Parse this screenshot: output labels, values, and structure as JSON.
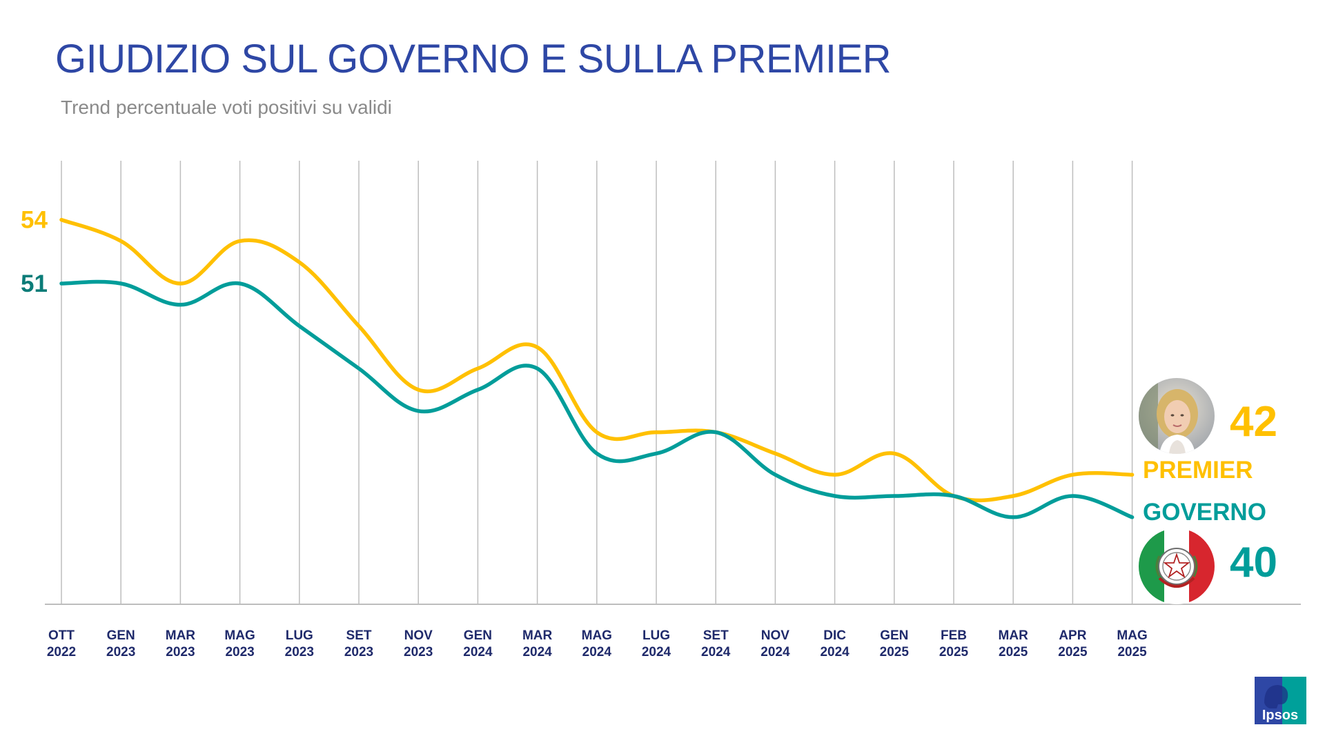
{
  "title": "GIUDIZIO SUL GOVERNO E SULLA PREMIER",
  "subtitle": "Trend percentuale voti positivi su validi",
  "chart_data": {
    "type": "line",
    "title": "GIUDIZIO SUL GOVERNO E SULLA PREMIER",
    "subtitle": "Trend percentuale voti positivi su validi",
    "categories": [
      [
        "OTT",
        "2022"
      ],
      [
        "GEN",
        "2023"
      ],
      [
        "MAR",
        "2023"
      ],
      [
        "MAG",
        "2023"
      ],
      [
        "LUG",
        "2023"
      ],
      [
        "SET",
        "2023"
      ],
      [
        "NOV",
        "2023"
      ],
      [
        "GEN",
        "2024"
      ],
      [
        "MAR",
        "2024"
      ],
      [
        "MAG",
        "2024"
      ],
      [
        "LUG",
        "2024"
      ],
      [
        "SET",
        "2024"
      ],
      [
        "NOV",
        "2024"
      ],
      [
        "DIC",
        "2024"
      ],
      [
        "GEN",
        "2025"
      ],
      [
        "FEB",
        "2025"
      ],
      [
        "MAR",
        "2025"
      ],
      [
        "APR",
        "2025"
      ],
      [
        "MAG",
        "2025"
      ]
    ],
    "series": [
      {
        "name": "PREMIER",
        "color": "#FFC000",
        "values": [
          54,
          53,
          51,
          53,
          52,
          49,
          46,
          47,
          48,
          44,
          44,
          44,
          43,
          42,
          43,
          41,
          41,
          42,
          42
        ],
        "start_label": "54",
        "end_label": "42"
      },
      {
        "name": "GOVERNO",
        "color": "#009D9A",
        "values": [
          51,
          51,
          50,
          51,
          49,
          47,
          45,
          46,
          47,
          43,
          43,
          44,
          42,
          41,
          41,
          41,
          40,
          41,
          40
        ],
        "start_label": "51",
        "end_label": "40"
      }
    ],
    "ylim": [
      34,
      57
    ],
    "grid": "vertical",
    "xlabel": "",
    "ylabel": ""
  },
  "labels": {
    "premier_name": "PREMIER",
    "premier_value": "42",
    "governo_name": "GOVERNO",
    "governo_value": "40",
    "premier_start": "54",
    "governo_start": "51"
  },
  "colors": {
    "title": "#2E47A5",
    "axis_text": "#1F2A6B",
    "premier": "#FFC000",
    "governo": "#009D9A",
    "governo_dark": "#0B7C78",
    "grid": "#BDBDBD"
  },
  "logo": {
    "text": "Ipsos"
  }
}
